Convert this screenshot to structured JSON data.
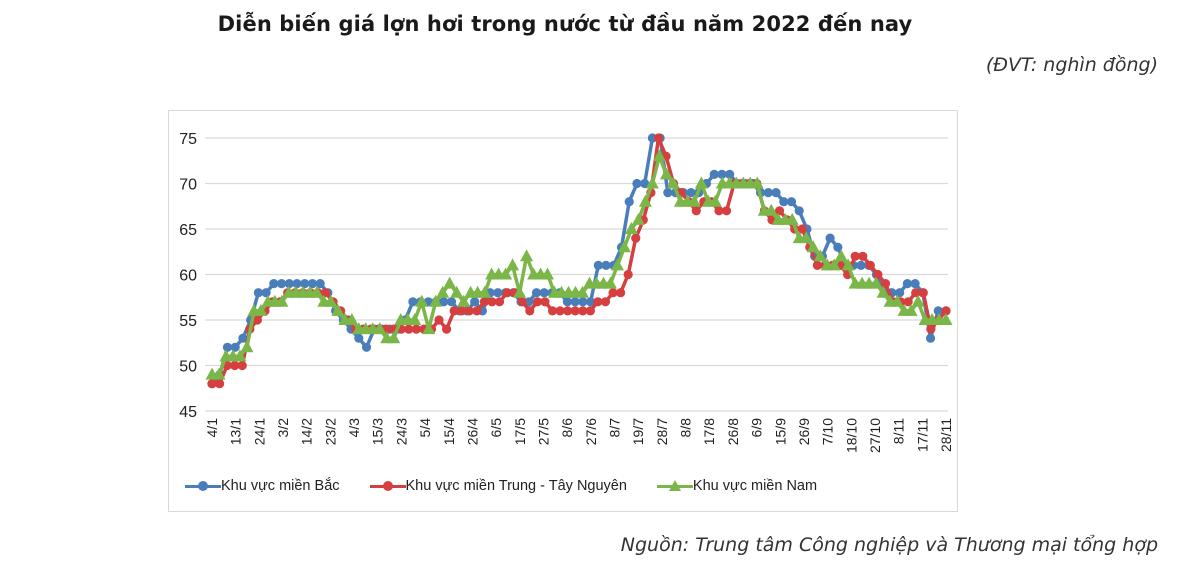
{
  "header": {
    "title": "Diễn biến giá lợn hơi trong nước từ đầu năm 2022 đến nay",
    "unit": "(ĐVT: nghìn đồng)"
  },
  "footer": {
    "source": "Nguồn: Trung tâm Công nghiệp và Thương mại tổng hợp"
  },
  "colors": {
    "bac": "#4a7ebb",
    "trung": "#d63f3f",
    "nam": "#7ab648",
    "grid": "#d9d9d9"
  },
  "chart_data": {
    "type": "line",
    "title": "Diễn biến giá lợn hơi trong nước từ đầu năm 2022 đến nay",
    "xlabel": "",
    "ylabel": "nghìn đồng",
    "ylim": [
      45,
      75
    ],
    "yticks": [
      45,
      50,
      55,
      60,
      65,
      70,
      75
    ],
    "grid": true,
    "legend_position": "bottom",
    "categories": [
      "4/1",
      "13/1",
      "24/1",
      "3/2",
      "14/2",
      "23/2",
      "4/3",
      "15/3",
      "24/3",
      "5/4",
      "15/4",
      "26/4",
      "6/5",
      "17/5",
      "27/5",
      "8/6",
      "27/6",
      "8/7",
      "19/7",
      "28/7",
      "8/8",
      "17/8",
      "26/8",
      "6/9",
      "15/9",
      "26/9",
      "7/10",
      "18/10",
      "27/10",
      "8/11",
      "17/11",
      "28/11"
    ],
    "series": [
      {
        "name": "Khu vực miền Bắc",
        "marker": "circle",
        "values": [
          48,
          52,
          58,
          59,
          59,
          56,
          53,
          54,
          57,
          57,
          56,
          57,
          58,
          57,
          58,
          57,
          61,
          63,
          75,
          69,
          69,
          71,
          70,
          69,
          68,
          62,
          64,
          61,
          60,
          58,
          59,
          56
        ],
        "dense": [
          48,
          49,
          52,
          52,
          53,
          55,
          58,
          58,
          59,
          59,
          59,
          59,
          59,
          59,
          59,
          58,
          56,
          55,
          54,
          53,
          52,
          54,
          54,
          54,
          54,
          55,
          57,
          57,
          57,
          57,
          57,
          57,
          56,
          56,
          57,
          56,
          58,
          58,
          58,
          58,
          57,
          57,
          58,
          58,
          58,
          58,
          57,
          57,
          57,
          57,
          61,
          61,
          61,
          63,
          68,
          70,
          70,
          75,
          75,
          69,
          69,
          69,
          69,
          69,
          70,
          71,
          71,
          71,
          70,
          70,
          70,
          69,
          69,
          69,
          68,
          68,
          67,
          65,
          62,
          62,
          64,
          63,
          61,
          61,
          61,
          61,
          60,
          58,
          58,
          58,
          59,
          59,
          58,
          53,
          56,
          56
        ]
      },
      {
        "name": "Khu vực miền Trung - Tây Nguyên",
        "marker": "circle",
        "values": [
          48,
          50,
          55,
          58,
          58,
          57,
          55,
          54,
          54,
          54,
          56,
          56,
          57,
          58,
          57,
          56,
          57,
          59,
          75,
          69,
          67,
          67,
          70,
          67,
          65,
          61,
          61,
          62,
          60,
          57,
          58,
          56
        ],
        "dense": [
          48,
          48,
          50,
          50,
          50,
          54,
          55,
          56,
          57,
          57,
          58,
          58,
          58,
          58,
          58,
          58,
          57,
          56,
          55,
          54,
          54,
          54,
          54,
          54,
          54,
          54,
          54,
          54,
          54,
          54,
          55,
          54,
          56,
          56,
          56,
          56,
          57,
          57,
          57,
          58,
          58,
          57,
          56,
          57,
          57,
          56,
          56,
          56,
          56,
          56,
          56,
          57,
          57,
          58,
          58,
          60,
          64,
          66,
          69,
          75,
          73,
          70,
          69,
          68,
          67,
          68,
          68,
          67,
          67,
          70,
          70,
          70,
          70,
          67,
          66,
          67,
          66,
          65,
          65,
          63,
          61,
          61,
          61,
          61,
          60,
          62,
          62,
          61,
          60,
          59,
          57,
          57,
          57,
          58,
          58,
          54,
          55,
          56
        ]
      },
      {
        "name": "Khu vực miền Nam",
        "marker": "triangle",
        "values": [
          49,
          51,
          56,
          57,
          58,
          57,
          55,
          54,
          53,
          55,
          58,
          57,
          58,
          60,
          60,
          58,
          59,
          61,
          68,
          72,
          68,
          70,
          70,
          67,
          66,
          64,
          62,
          59,
          59,
          57,
          56,
          55
        ],
        "dense": [
          49,
          49,
          51,
          51,
          51,
          52,
          56,
          56,
          57,
          57,
          57,
          58,
          58,
          58,
          58,
          58,
          57,
          57,
          56,
          55,
          55,
          54,
          54,
          54,
          54,
          53,
          53,
          55,
          55,
          55,
          57,
          54,
          57,
          58,
          59,
          58,
          57,
          58,
          58,
          58,
          60,
          60,
          60,
          61,
          58,
          62,
          60,
          60,
          60,
          58,
          58,
          58,
          58,
          58,
          59,
          59,
          59,
          59,
          61,
          63,
          65,
          66,
          68,
          70,
          73,
          71,
          70,
          68,
          68,
          68,
          70,
          68,
          68,
          70,
          70,
          70,
          70,
          70,
          70,
          67,
          67,
          66,
          66,
          66,
          64,
          64,
          63,
          62,
          61,
          61,
          62,
          61,
          59,
          59,
          59,
          59,
          58,
          57,
          57,
          56,
          56,
          57,
          55,
          55,
          55,
          55
        ]
      }
    ]
  },
  "legend": {
    "items": [
      {
        "label": "Khu vực miền Bắc"
      },
      {
        "label": "Khu vực miền Trung - Tây Nguyên"
      },
      {
        "label": "Khu vực miền Nam"
      }
    ]
  }
}
